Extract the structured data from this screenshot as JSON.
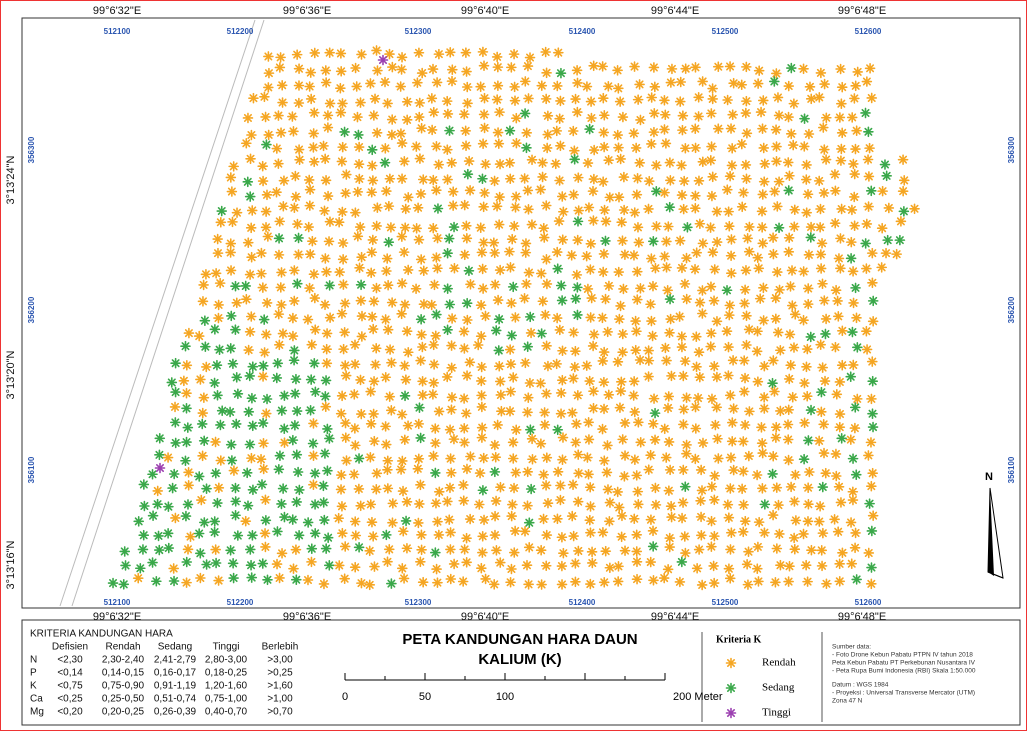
{
  "map": {
    "lon_labels": [
      "99°6'32\"E",
      "99°6'36\"E",
      "99°6'40\"E",
      "99°6'44\"E",
      "99°6'48\"E"
    ],
    "utm_x_labels": [
      "512100",
      "512200",
      "512300",
      "512400",
      "512500",
      "512600"
    ],
    "lat_labels": [
      "3°13'24\"N",
      "3°13'20\"N",
      "3°13'16\"N"
    ],
    "utm_y_labels": [
      "356300",
      "356200",
      "356100"
    ],
    "north": "N"
  },
  "criteria_table": {
    "title": "KRITERIA KANDUNGAN HARA",
    "headers": [
      "Defisien",
      "Rendah",
      "Sedang",
      "Tinggi",
      "Berlebih"
    ],
    "rows": [
      [
        "N",
        "<2,30",
        "2,30-2,40",
        "2,41-2,79",
        "2,80-3,00",
        ">3,00"
      ],
      [
        "P",
        "<0,14",
        "0,14-0,15",
        "0,16-0,17",
        "0,18-0,25",
        ">0,25"
      ],
      [
        "K",
        "<0,75",
        "0,75-0,90",
        "0,91-1,19",
        "1,20-1,60",
        ">1,60"
      ],
      [
        "Ca",
        "<0,25",
        "0,25-0,50",
        "0,51-0,74",
        "0,75-1,00",
        ">1,00"
      ],
      [
        "Mg",
        "<0,20",
        "0,20-0,25",
        "0,26-0,39",
        "0,40-0,70",
        ">0,70"
      ]
    ]
  },
  "title": [
    "PETA KANDUNGAN HARA DAUN",
    "KALIUM (K)"
  ],
  "scale_bar": {
    "labels": [
      "0",
      "50",
      "100",
      "200 Meter"
    ]
  },
  "legend": {
    "title": "Kriteria K",
    "items": [
      {
        "label": "Rendah",
        "color": "#f5a623"
      },
      {
        "label": "Sedang",
        "color": "#3aa84a"
      },
      {
        "label": "Tinggi",
        "color": "#9b3fb0"
      }
    ]
  },
  "sources": [
    "Sumber data:",
    "- Foto Drone Kebun Pabatu PTPN IV tahun 2018",
    "  Peta Kebun Pabatu PT Perkebunan Nusantara IV",
    "- Peta Rupa Bumi Indonesia (RBI) Skala 1:50.000",
    "Datum     : WGS 1984",
    "- Proyeksi : Universal Transverse Mercator (UTM)",
    "  Zona 47 N"
  ]
}
